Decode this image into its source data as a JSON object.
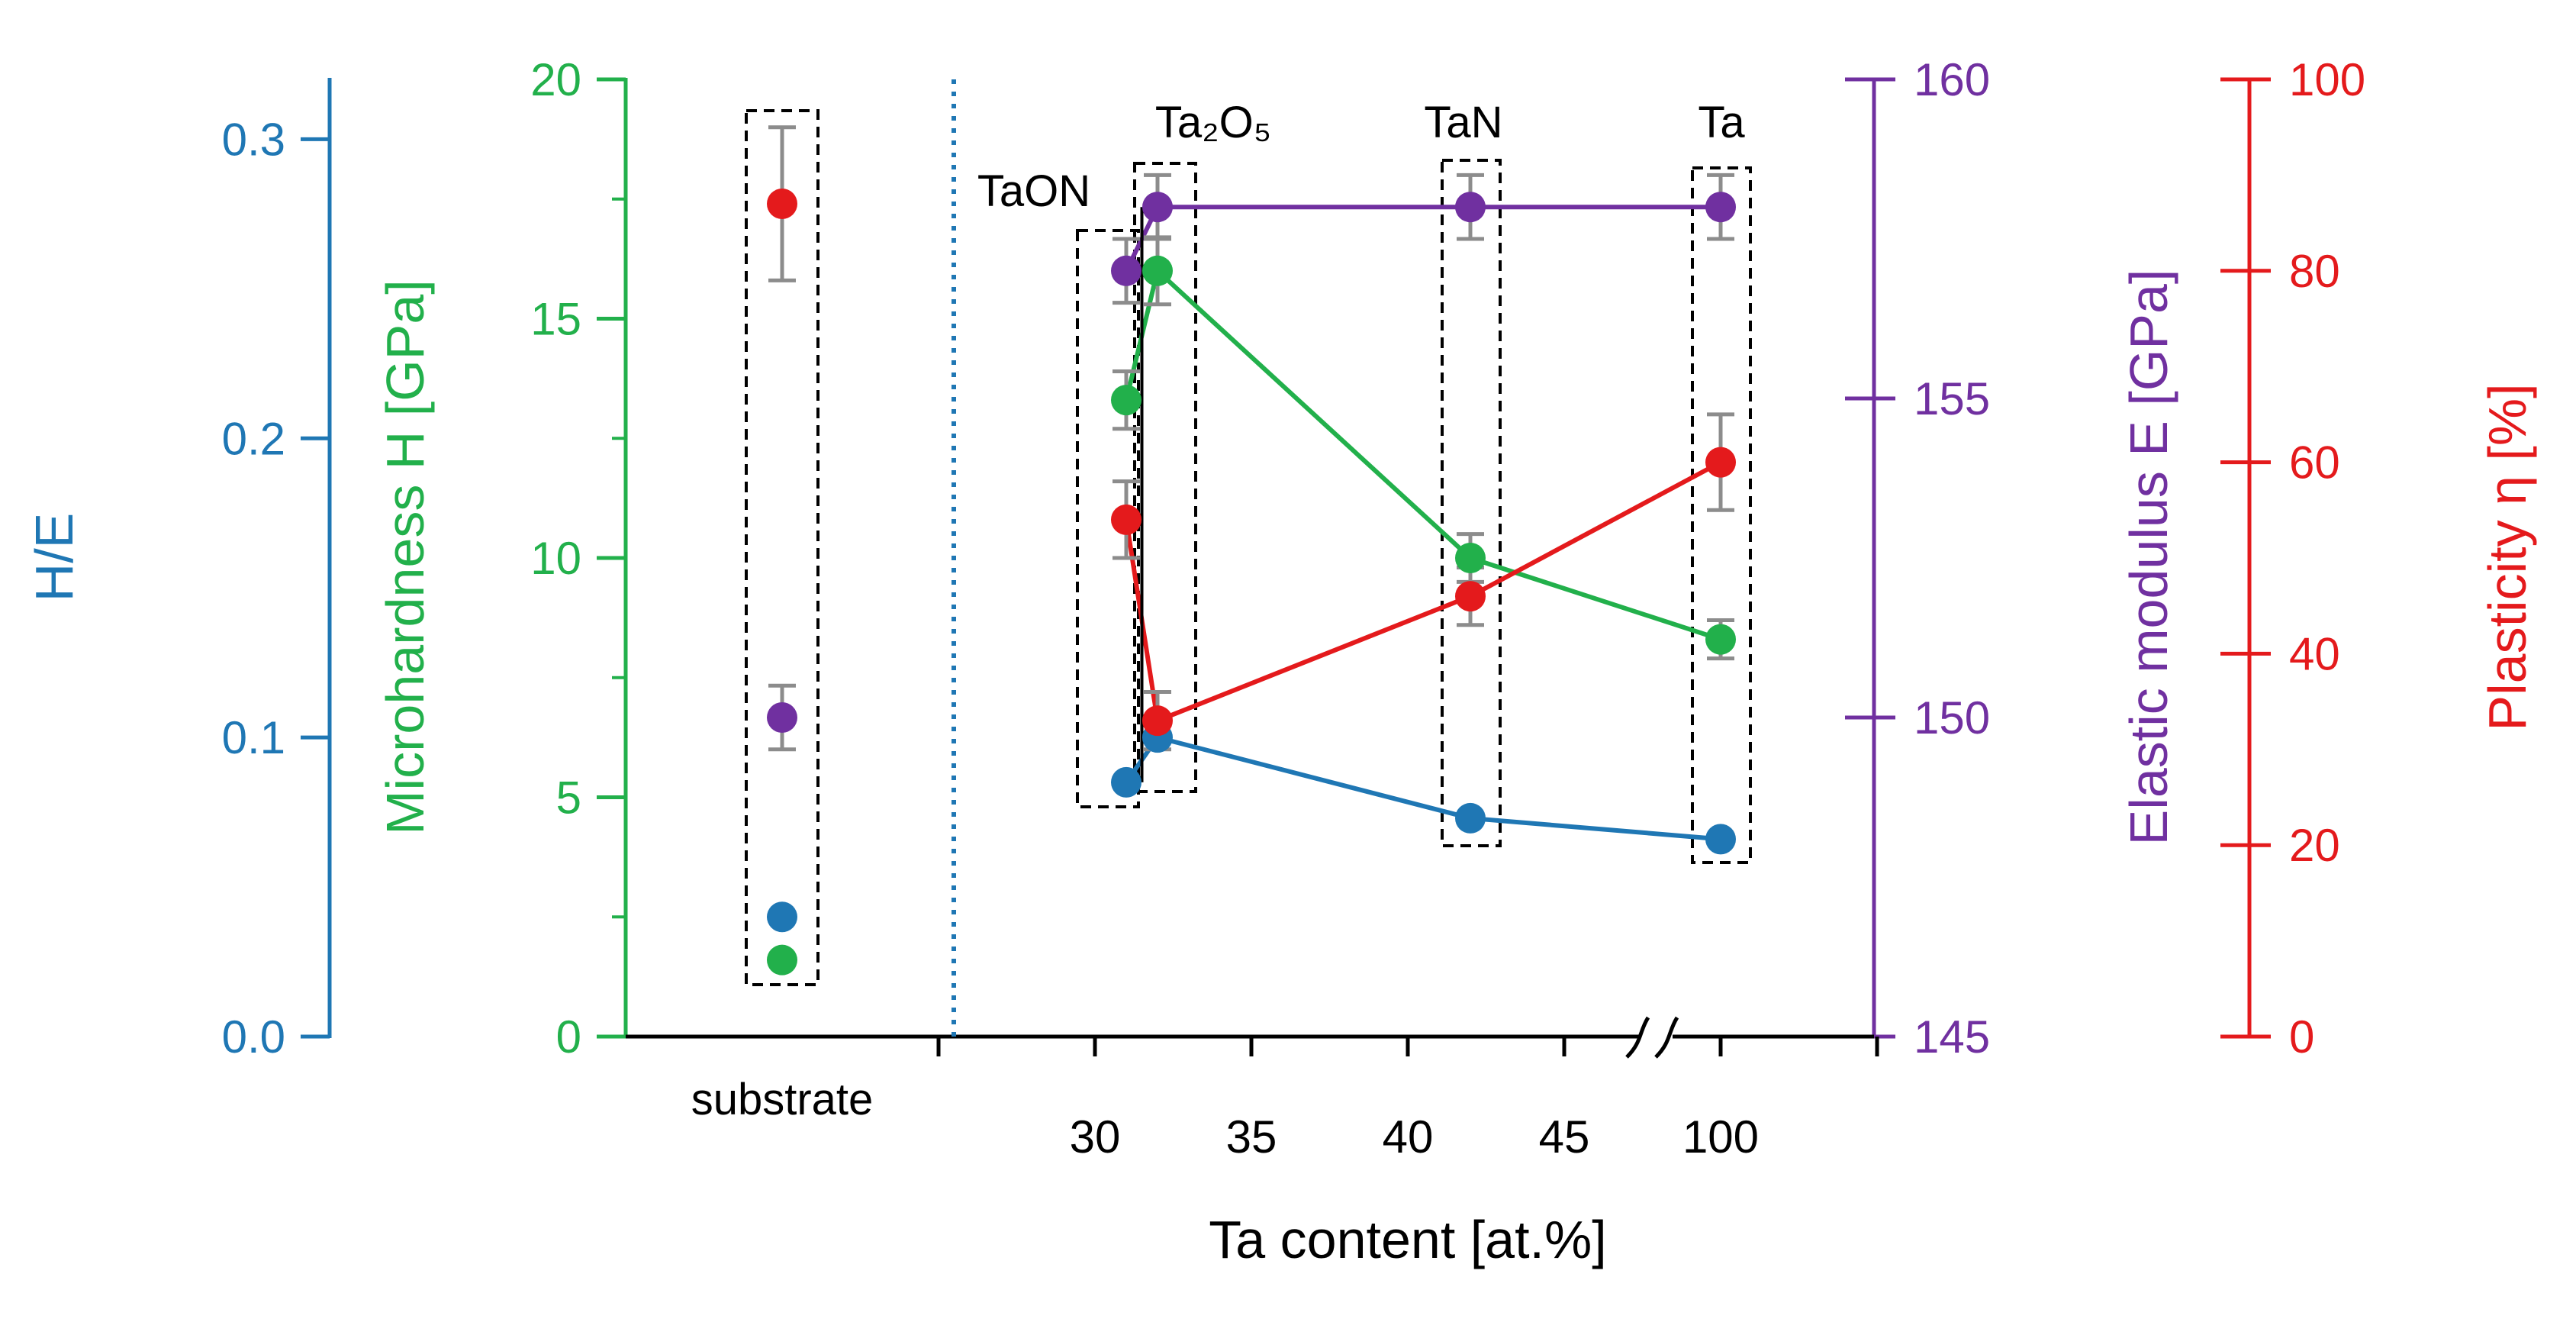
{
  "chart_data": {
    "type": "scatter",
    "colors": {
      "he": "#1f77b4",
      "hardness": "#22b04b",
      "modulus": "#7030a0",
      "plasticity": "#e41a1c",
      "errorbar": "#8c8c8c",
      "box": "#000000",
      "divider": "#1f77b4"
    },
    "x_axis": {
      "label": "Ta content [at.%]",
      "substrate_label": "substrate",
      "tick_labels": [
        "30",
        "35",
        "40",
        "45",
        "100"
      ],
      "ticks": [
        30,
        35,
        40,
        45
      ]
    },
    "axes": {
      "he": {
        "label": "H/E",
        "ticks": [
          "0.0",
          "0.1",
          "0.2",
          "0.3"
        ],
        "tick_values": [
          0,
          0.1,
          0.2,
          0.3
        ],
        "range": [
          0,
          0.32
        ]
      },
      "hardness": {
        "label": "Microhardness H [GPa]",
        "ticks": [
          "0",
          "5",
          "10",
          "15",
          "20"
        ],
        "tick_values": [
          0,
          5,
          10,
          15,
          20
        ],
        "range": [
          0,
          20
        ]
      },
      "modulus": {
        "label": "Elastic modulus E [GPa]",
        "ticks": [
          "145",
          "150",
          "155",
          "160"
        ],
        "tick_values": [
          145,
          150,
          155,
          160
        ],
        "range": [
          145,
          160
        ]
      },
      "plasticity": {
        "label": "Plasticity η [%]",
        "ticks": [
          "0",
          "20",
          "40",
          "60",
          "80",
          "100"
        ],
        "tick_values": [
          0,
          20,
          40,
          60,
          80,
          100
        ],
        "range": [
          0,
          100
        ]
      }
    },
    "phase_labels": [
      "TaON",
      "Ta₂O₅",
      "TaN",
      "Ta"
    ],
    "substrate": {
      "he": 0.04,
      "hardness": 1.6,
      "modulus": 150.0,
      "modulus_err": 0.5,
      "plasticity": 87.0,
      "plasticity_err": 8.0
    },
    "series": [
      {
        "name": "H/E",
        "axis": "he",
        "x": [
          31,
          32,
          42,
          100
        ],
        "values": [
          0.085,
          0.1,
          0.073,
          0.066
        ]
      },
      {
        "name": "Microhardness H",
        "axis": "hardness",
        "x": [
          31,
          32,
          42,
          100
        ],
        "values": [
          13.3,
          16.0,
          10.0,
          8.3
        ],
        "errors": [
          0.6,
          0.7,
          0.5,
          0.4
        ]
      },
      {
        "name": "Elastic modulus E",
        "axis": "modulus",
        "x": [
          31,
          32,
          42,
          100
        ],
        "values": [
          157.0,
          158.0,
          158.0,
          158.0
        ],
        "errors": [
          0.5,
          0.5,
          0.5,
          0.5
        ]
      },
      {
        "name": "Plasticity η",
        "axis": "plasticity",
        "x": [
          31,
          32,
          42,
          100
        ],
        "values": [
          54.0,
          33.0,
          46.0,
          60.0
        ],
        "errors": [
          4.0,
          3.0,
          3.0,
          5.0
        ]
      }
    ]
  }
}
